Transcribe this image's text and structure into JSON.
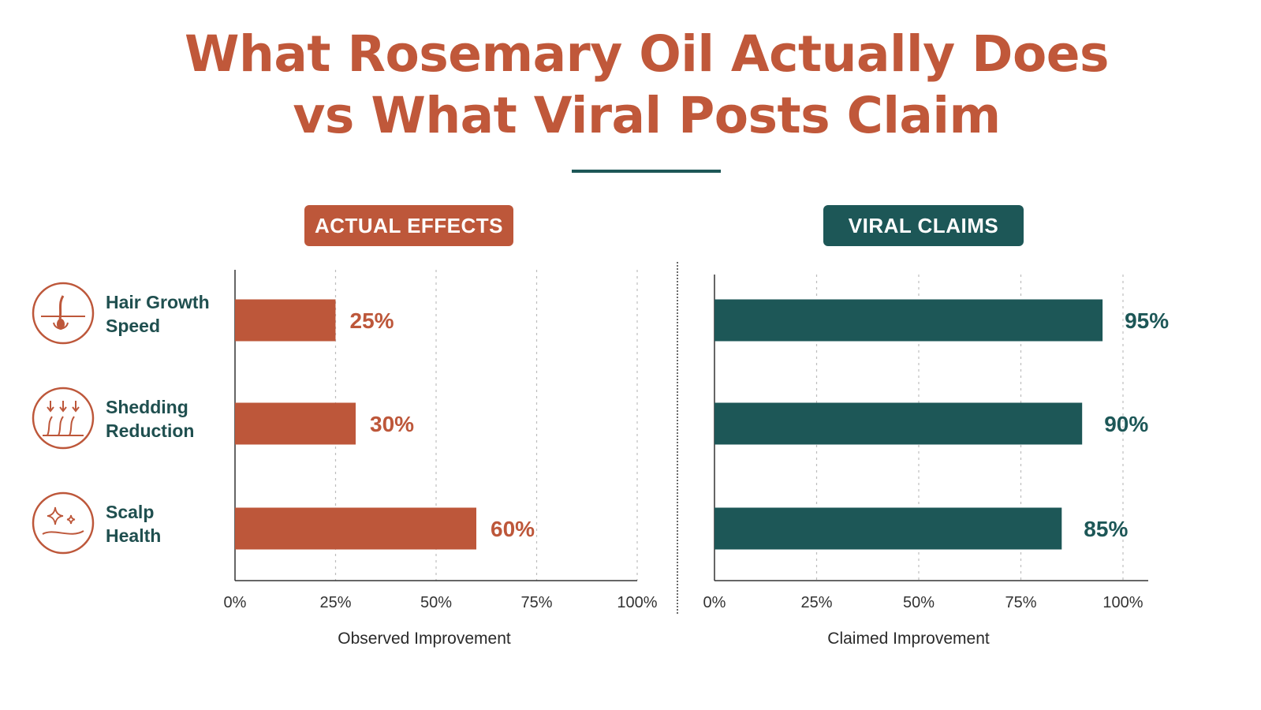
{
  "title": {
    "line1": "What Rosemary Oil Actually Does",
    "line2": "vs What Viral Posts Claim"
  },
  "colors": {
    "actual": "#bd573a",
    "viral": "#1d5757",
    "label_text": "#1f4f4f"
  },
  "categories": [
    {
      "label": "Hair Growth\nSpeed",
      "icon": "hair-follicle-icon"
    },
    {
      "label": "Shedding\nReduction",
      "icon": "falling-hair-icon"
    },
    {
      "label": "Scalp\nHealth",
      "icon": "sparkle-scalp-icon"
    }
  ],
  "chart_data": [
    {
      "type": "bar",
      "orientation": "horizontal",
      "title": "ACTUAL EFFECTS",
      "categories": [
        "Hair Growth Speed",
        "Shedding Reduction",
        "Scalp Health"
      ],
      "values": [
        25,
        30,
        60
      ],
      "value_labels": [
        "25%",
        "30%",
        "60%"
      ],
      "xlabel": "Observed Improvement",
      "xlim": [
        0,
        100
      ],
      "xticks": [
        "0%",
        "25%",
        "50%",
        "75%",
        "100%"
      ],
      "grid": "vertical dotted",
      "color": "#bd573a"
    },
    {
      "type": "bar",
      "orientation": "horizontal",
      "title": "VIRAL CLAIMS",
      "categories": [
        "Hair Growth Speed",
        "Shedding Reduction",
        "Scalp Health"
      ],
      "values": [
        95,
        90,
        85
      ],
      "value_labels": [
        "95%",
        "90%",
        "85%"
      ],
      "xlabel": "Claimed Improvement",
      "xlim": [
        0,
        100
      ],
      "xticks": [
        "0%",
        "25%",
        "50%",
        "75%",
        "100%"
      ],
      "grid": "vertical dotted",
      "color": "#1d5757"
    }
  ]
}
